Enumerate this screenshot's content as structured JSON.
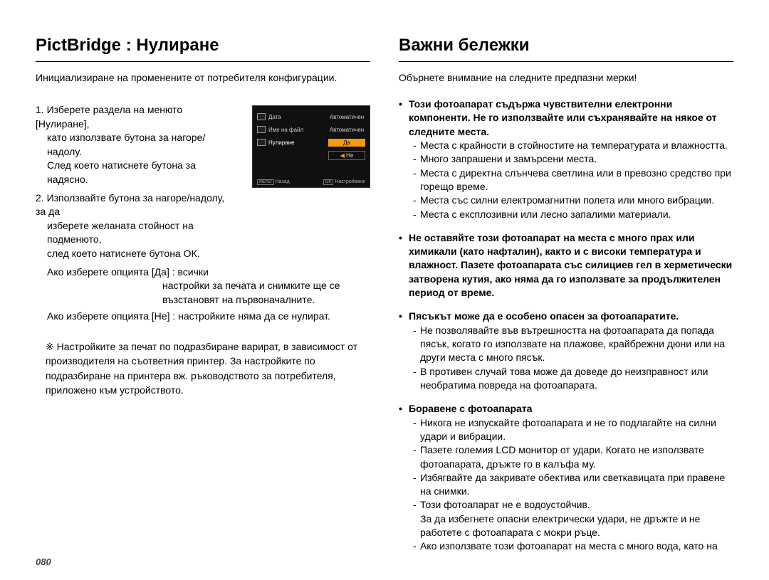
{
  "pageNumber": "080",
  "left": {
    "heading": "PictBridge : Нулиране",
    "intro": "Инициализиране на променените от потребителя конфигурации.",
    "step1_l1": "1. Изберете раздела на менюто [Нулиране],",
    "step1_l2": "като използвате бутона за нагоре/надолу.",
    "step1_l3": "След което натиснете бутона за надясно.",
    "step2_l1": "2. Използвайте бутона за нагоре/надолу, за да",
    "step2_l2": "изберете желаната стойност на подменюто,",
    "step2_l3": "след което натиснете бутона ОК.",
    "yes_l1": "Ако изберете опцията [Да] : всички",
    "yes_l2": "настройки за печата и снимките ще се",
    "yes_l3": "възстановят на първоначалните.",
    "no_line": "Ако изберете опцията [Не] : настройките няма да се нулират.",
    "note": "※ Настройките за печат по подразбиране варират, в зависимост от производителя на съответния принтер. За настройките по подразбиране на принтера вж. ръководството за потребителя, приложено към устройството.",
    "lcd": {
      "row1_label": "Дата",
      "row1_val": "Автоматичен",
      "row2_label": "Име на файл",
      "row2_val": "Автоматичен",
      "row3_label": "Нулиране",
      "opt_yes": "Да",
      "opt_no": "Не",
      "foot_back_btn": "MENU",
      "foot_back": "Назад",
      "foot_ok_btn": "OK",
      "foot_ok": "Настройване"
    }
  },
  "right": {
    "heading": "Важни бележки",
    "intro": "Обърнете внимание на следните предпазни мерки!",
    "b1_head": "Този фотоапарат съдържа чувствителни електронни компоненти. Не го използвайте или съхранявайте на някое от следните места.",
    "b1_items": [
      "Места с крайности в стойностите на температурата и влажността.",
      "Много запрашени и замърсени места.",
      "Места с директна слънчева светлина или в превозно средство при горещо време.",
      "Места със силни електромагнитни полета или много вибрации.",
      "Места с експлозивни или лесно запалими материали."
    ],
    "b2_head": "Не оставяйте този фотоапарат на места с много прах или химикали (като нафталин), както и с високи температура и влажност. Пазете фотоапарата със силициев гел в херметически затворена кутия, ако няма да го използвате за продължителен период от време.",
    "b3_head": "Пясъкът може да е особено опасен за фотоапаратите.",
    "b3_items": [
      "Не позволявайте във вътрешността на фотоапарата да попада пясък, когато го използвате на плажове, крайбрежни дюни или на други места с много пясък.",
      "В противен случай това може да доведе до неизправност или необратима повреда на фотоапарата."
    ],
    "b4_head": "Боравене с фотоапарата",
    "b4_items": [
      "Никога не изпускайте фотоапарата и не го подлагайте на силни удари и вибрации.",
      "Пазете големия LCD монитор от удари. Когато не използвате фотоапарата, дръжте го в калъфа му.",
      "Избягвайте да закривате обектива или светкавицата при правене на снимки.",
      "Този фотоапарат не е водоустойчив.\nЗа да избегнете опасни електрически удари, не дръжте и не работете с фотоапарата с мокри ръце.",
      "Ако използвате този фотоапарат на места с много вода, като на"
    ]
  }
}
